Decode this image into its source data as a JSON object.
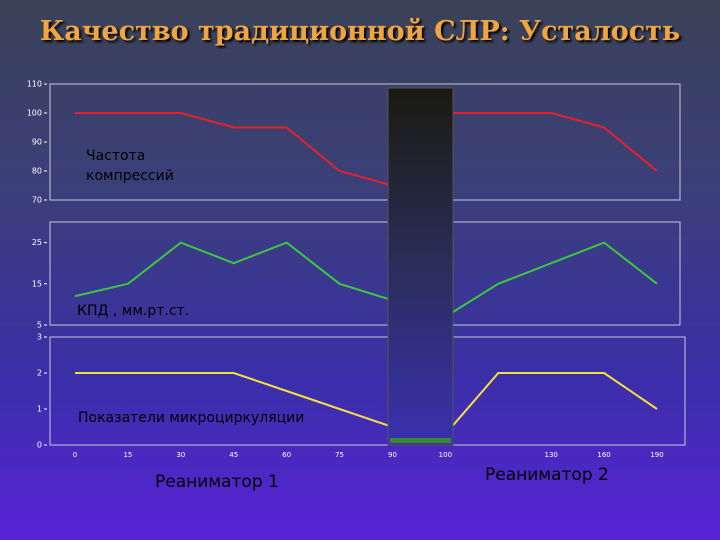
{
  "title": "Качество традиционной СЛР: Усталость",
  "annotations": [
    "Реаниматор 1",
    "Реаниматор 2"
  ],
  "chart_data": [
    {
      "type": "line",
      "ylim": [
        70,
        110
      ],
      "yticks": [
        70,
        80,
        90,
        100,
        110
      ],
      "series": [
        {
          "name": "Частота компрессий",
          "color": "#e8202a",
          "values": [
            100,
            100,
            100,
            95,
            95,
            80,
            75,
            100,
            100,
            100,
            95,
            80
          ]
        }
      ]
    },
    {
      "type": "line",
      "ylim": [
        5,
        30
      ],
      "yticks": [
        5,
        15,
        25
      ],
      "series": [
        {
          "name": "КПД , мм.рт.ст.",
          "color": "#3cc83c",
          "values": [
            12,
            15,
            25,
            20,
            25,
            15,
            11,
            7,
            15,
            20,
            25,
            15
          ]
        }
      ]
    },
    {
      "type": "line",
      "ylim": [
        0,
        3
      ],
      "yticks": [
        0,
        1,
        2,
        3
      ],
      "categories": [
        "0",
        "15",
        "30",
        "45",
        "60",
        "75",
        "90",
        "100",
        null,
        "130",
        "160",
        "190"
      ],
      "series": [
        {
          "name": "Показатели микроциркуляции",
          "color": "#f0e040",
          "values": [
            2,
            2,
            2,
            2,
            1.5,
            1,
            0.5,
            0.3,
            2,
            2,
            2,
            1
          ]
        }
      ]
    }
  ]
}
